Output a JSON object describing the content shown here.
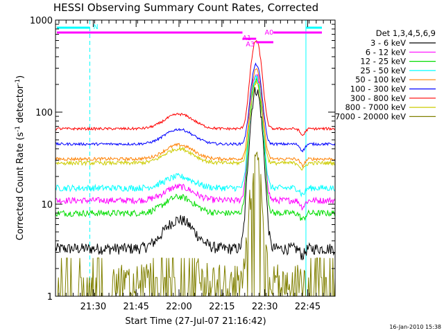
{
  "chart_data": {
    "type": "line",
    "title": "HESSI Observing Summary Count Rates, Corrected",
    "xlabel": "Start Time (27-Jul-07 21:16:42)",
    "ylabel_main": "Corrected Count Rate (s",
    "ylabel_sup1": "-1",
    "ylabel_mid": " detector",
    "ylabel_sup2": "-1",
    "ylabel_end": ")",
    "y_scale": "log",
    "ylim": [
      1,
      1000
    ],
    "xlim_minutes": [
      21.28,
      22.91
    ],
    "x_ticks": [
      {
        "label": "21:30",
        "t": 21.5
      },
      {
        "label": "21:45",
        "t": 21.75
      },
      {
        "label": "22:00",
        "t": 22.0
      },
      {
        "label": "22:15",
        "t": 22.25
      },
      {
        "label": "22:30",
        "t": 22.5
      },
      {
        "label": "22:45",
        "t": 22.75
      }
    ],
    "y_ticks": [
      {
        "label": "1",
        "v": 1
      },
      {
        "label": "10",
        "v": 10
      },
      {
        "label": "100",
        "v": 100
      },
      {
        "label": "1000",
        "v": 1000
      }
    ],
    "legend_title": "Det 1,3,4,5,6,9",
    "legend_position": "right",
    "series": [
      {
        "name": "3 - 6 keV",
        "color": "#000000",
        "base": 3.3,
        "bump": 6.8,
        "peak": 175,
        "noise": 0.09
      },
      {
        "name": "6 - 12 keV",
        "color": "#ff00ff",
        "base": 11,
        "bump": 15.5,
        "peak": 260,
        "noise": 0.05
      },
      {
        "name": "12 - 25 keV",
        "color": "#00dd00",
        "base": 8,
        "bump": 12,
        "peak": 225,
        "noise": 0.05
      },
      {
        "name": "25 - 50 keV",
        "color": "#00ffff",
        "base": 15,
        "bump": 20,
        "peak": 240,
        "noise": 0.05
      },
      {
        "name": "50 - 100 keV",
        "color": "#ff8000",
        "base": 31,
        "bump": 44,
        "peak": 290,
        "noise": 0.025
      },
      {
        "name": "100 - 300 keV",
        "color": "#0000ff",
        "base": 45,
        "bump": 65,
        "peak": 330,
        "noise": 0.02
      },
      {
        "name": "300 - 800 keV",
        "color": "#ff0000",
        "base": 66,
        "bump": 95,
        "peak": 600,
        "noise": 0.02
      },
      {
        "name": "800 - 7000 keV",
        "color": "#cccc00",
        "base": 28,
        "bump": 40,
        "peak": 210,
        "noise": 0.03
      },
      {
        "name": "7000 - 20000 keV",
        "color": "#808000",
        "base": 1.6,
        "bump": 2.6,
        "peak": 30,
        "noise": 0.25
      }
    ],
    "flags": {
      "night_label": "N",
      "attenuator_labels": [
        "A0",
        "A1",
        "A3"
      ],
      "eclipse_segments_color": "#00ffff",
      "saa_color": "#ff00ff"
    },
    "vertical_markers_minutes": [
      21.28,
      21.48,
      22.74,
      22.93
    ]
  },
  "footer": {
    "timestamp": "16-Jan-2010 15:38"
  }
}
